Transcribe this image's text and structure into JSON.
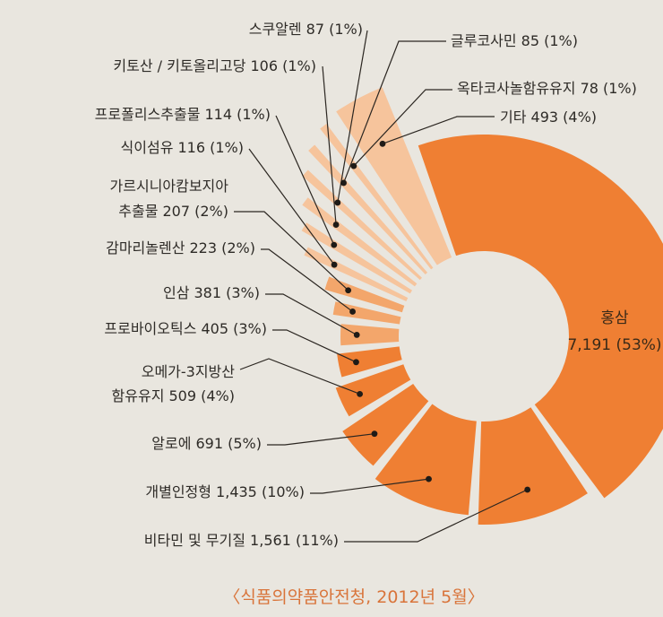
{
  "chart_data": {
    "type": "pie",
    "variant": "exploded-donut",
    "title": "",
    "source": "〈식품의약품안전청, 2012년 5월〉",
    "colors": {
      "main": "#ef7f33",
      "mid": "#f3a66b",
      "light": "#f6c49c"
    },
    "slices": [
      {
        "label": "홍삼",
        "value": 7191,
        "value_text": "7,191",
        "percent_text": "(53%)",
        "text": "홍삼 7,191 (53%)"
      },
      {
        "label": "비타민 및 무기질",
        "value": 1561,
        "value_text": "1,561",
        "percent_text": "(11%)",
        "text": "비타민 및 무기질 1,561 (11%)"
      },
      {
        "label": "개별인정형",
        "value": 1435,
        "value_text": "1,435",
        "percent_text": "(10%)",
        "text": "개별인정형 1,435 (10%)"
      },
      {
        "label": "알로에",
        "value": 691,
        "value_text": "691",
        "percent_text": "(5%)",
        "text": "알로에 691 (5%)"
      },
      {
        "label": "오메가-3지방산 함유유지",
        "value": 509,
        "value_text": "509",
        "percent_text": "(4%)",
        "text": "오메가-3지방산",
        "text2": "함유유지 509 (4%)"
      },
      {
        "label": "프로바이오틱스",
        "value": 405,
        "value_text": "405",
        "percent_text": "(3%)",
        "text": "프로바이오틱스 405 (3%)"
      },
      {
        "label": "인삼",
        "value": 381,
        "value_text": "381",
        "percent_text": "(3%)",
        "text": "인삼 381  (3%)"
      },
      {
        "label": "감마리놀렌산",
        "value": 223,
        "value_text": "223",
        "percent_text": "(2%)",
        "text": "감마리놀렌산 223 (2%)"
      },
      {
        "label": "가르시니아캄보지아 추출물",
        "value": 207,
        "value_text": "207",
        "percent_text": "(2%)",
        "text": "가르시니아캄보지아",
        "text2": "추출물 207 (2%)"
      },
      {
        "label": "식이섬유",
        "value": 116,
        "value_text": "116",
        "percent_text": "(1%)",
        "text": "식이섬유 116 (1%)"
      },
      {
        "label": "프로폴리스추출물",
        "value": 114,
        "value_text": "114",
        "percent_text": "(1%)",
        "text": "프로폴리스추출물 114 (1%)"
      },
      {
        "label": "키토산 / 키토올리고당",
        "value": 106,
        "value_text": "106",
        "percent_text": "(1%)",
        "text": "키토산 / 키토올리고당 106 (1%)"
      },
      {
        "label": "스쿠알렌",
        "value": 87,
        "value_text": "87",
        "percent_text": "(1%)",
        "text": "스쿠알렌 87 (1%)"
      },
      {
        "label": "글루코사민",
        "value": 85,
        "value_text": "85",
        "percent_text": "(1%)",
        "text": "글루코사민 85 (1%)"
      },
      {
        "label": "옥타코사놀함유유지",
        "value": 78,
        "value_text": "78",
        "percent_text": "(1%)",
        "text": "옥타코사놀함유유지 78 (1%)"
      },
      {
        "label": "기타",
        "value": 493,
        "value_text": "493",
        "percent_text": "(4%)",
        "text": "기타 493 (4%)"
      }
    ]
  }
}
